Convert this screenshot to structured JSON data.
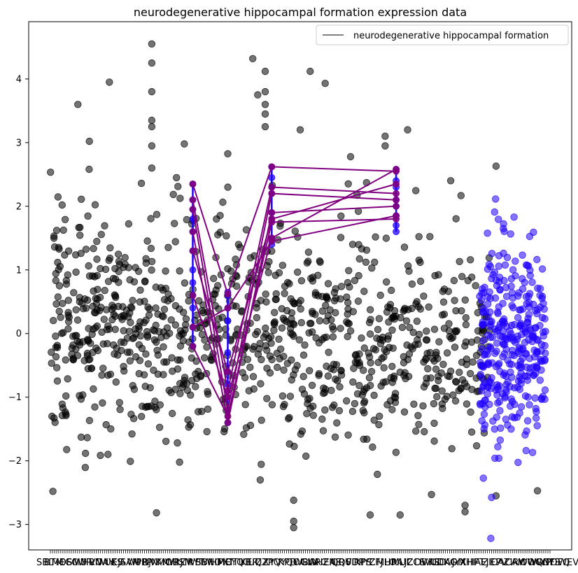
{
  "chart_data": {
    "type": "scatter",
    "title": "neurodegenerative hippocampal formation expression data",
    "xlabel": "",
    "ylabel": "",
    "ylim": [
      -3.4,
      4.9
    ],
    "yticks": [
      -3,
      -2,
      -1,
      0,
      1,
      2,
      3,
      4
    ],
    "grid": false,
    "legend": {
      "placement": "top-right",
      "entries": [
        {
          "label": "neurodegenerative hippocampal formation",
          "color": "#808080",
          "marker": "line"
        }
      ]
    },
    "x_tick_labels_visible": [
      "AGT",
      "WNQ",
      "QGPR"
    ],
    "background_points": {
      "color": "#000000",
      "alpha": 0.55,
      "seed": 7,
      "columns": [
        {
          "x": 0.01,
          "n": 30,
          "mean": 0.2,
          "sd": 1.0
        },
        {
          "x": 0.03,
          "n": 28,
          "mean": 0.1,
          "sd": 0.9
        },
        {
          "x": 0.05,
          "n": 25,
          "mean": 0.3,
          "sd": 0.8
        },
        {
          "x": 0.07,
          "n": 30,
          "mean": 0.0,
          "sd": 1.0
        },
        {
          "x": 0.09,
          "n": 30,
          "mean": 0.4,
          "sd": 0.9
        },
        {
          "x": 0.11,
          "n": 25,
          "mean": 0.2,
          "sd": 1.0
        },
        {
          "x": 0.13,
          "n": 28,
          "mean": 0.3,
          "sd": 0.9
        },
        {
          "x": 0.15,
          "n": 25,
          "mean": 0.1,
          "sd": 0.8
        },
        {
          "x": 0.17,
          "n": 25,
          "mean": 0.0,
          "sd": 0.8
        },
        {
          "x": 0.19,
          "n": 28,
          "mean": 0.2,
          "sd": 1.0
        },
        {
          "x": 0.21,
          "n": 25,
          "mean": 0.1,
          "sd": 0.9
        },
        {
          "x": 0.23,
          "n": 22,
          "mean": 0.0,
          "sd": 0.8
        },
        {
          "x": 0.25,
          "n": 25,
          "mean": 0.2,
          "sd": 1.0
        },
        {
          "x": 0.27,
          "n": 22,
          "mean": -0.2,
          "sd": 0.8
        },
        {
          "x": 0.29,
          "n": 22,
          "mean": 0.1,
          "sd": 0.9
        },
        {
          "x": 0.31,
          "n": 22,
          "mean": 0.0,
          "sd": 0.8
        },
        {
          "x": 0.33,
          "n": 25,
          "mean": 0.3,
          "sd": 0.9
        },
        {
          "x": 0.35,
          "n": 22,
          "mean": 0.0,
          "sd": 0.8
        },
        {
          "x": 0.37,
          "n": 22,
          "mean": 0.1,
          "sd": 0.8
        },
        {
          "x": 0.39,
          "n": 22,
          "mean": 0.0,
          "sd": 0.8
        },
        {
          "x": 0.41,
          "n": 22,
          "mean": -0.1,
          "sd": 0.8
        },
        {
          "x": 0.43,
          "n": 22,
          "mean": 0.0,
          "sd": 0.8
        },
        {
          "x": 0.45,
          "n": 22,
          "mean": 0.0,
          "sd": 0.9
        },
        {
          "x": 0.47,
          "n": 22,
          "mean": -0.2,
          "sd": 0.8
        },
        {
          "x": 0.49,
          "n": 25,
          "mean": 0.1,
          "sd": 0.8
        },
        {
          "x": 0.51,
          "n": 22,
          "mean": -0.1,
          "sd": 0.8
        },
        {
          "x": 0.53,
          "n": 22,
          "mean": 0.0,
          "sd": 0.9
        },
        {
          "x": 0.55,
          "n": 25,
          "mean": -0.1,
          "sd": 0.8
        },
        {
          "x": 0.57,
          "n": 22,
          "mean": -0.3,
          "sd": 0.8
        },
        {
          "x": 0.59,
          "n": 22,
          "mean": 0.1,
          "sd": 0.8
        },
        {
          "x": 0.61,
          "n": 25,
          "mean": 0.2,
          "sd": 0.9
        },
        {
          "x": 0.63,
          "n": 22,
          "mean": -0.1,
          "sd": 0.8
        },
        {
          "x": 0.65,
          "n": 22,
          "mean": -0.2,
          "sd": 0.8
        },
        {
          "x": 0.67,
          "n": 22,
          "mean": 0.0,
          "sd": 0.7
        },
        {
          "x": 0.69,
          "n": 22,
          "mean": -0.3,
          "sd": 0.8
        },
        {
          "x": 0.71,
          "n": 22,
          "mean": 0.0,
          "sd": 0.8
        },
        {
          "x": 0.73,
          "n": 20,
          "mean": -0.2,
          "sd": 0.8
        },
        {
          "x": 0.75,
          "n": 20,
          "mean": 0.0,
          "sd": 0.7
        },
        {
          "x": 0.77,
          "n": 20,
          "mean": -0.3,
          "sd": 0.8
        },
        {
          "x": 0.79,
          "n": 20,
          "mean": -0.1,
          "sd": 0.7
        },
        {
          "x": 0.81,
          "n": 20,
          "mean": -0.3,
          "sd": 0.8
        },
        {
          "x": 0.83,
          "n": 18,
          "mean": -0.2,
          "sd": 0.7
        },
        {
          "x": 0.85,
          "n": 18,
          "mean": -0.3,
          "sd": 0.8
        },
        {
          "x": 0.87,
          "n": 18,
          "mean": -0.4,
          "sd": 0.8
        }
      ]
    },
    "highlight_points": {
      "color": "#1f00ff",
      "alpha": 0.55,
      "seed": 11,
      "columns": [
        {
          "x": 0.865,
          "n": 40,
          "mean": -0.4,
          "sd": 0.8
        },
        {
          "x": 0.88,
          "n": 40,
          "mean": -0.2,
          "sd": 0.8
        },
        {
          "x": 0.895,
          "n": 45,
          "mean": -0.3,
          "sd": 0.9
        },
        {
          "x": 0.91,
          "n": 40,
          "mean": -0.1,
          "sd": 0.8
        },
        {
          "x": 0.925,
          "n": 35,
          "mean": -0.2,
          "sd": 0.7
        },
        {
          "x": 0.94,
          "n": 40,
          "mean": -0.2,
          "sd": 0.8
        },
        {
          "x": 0.955,
          "n": 40,
          "mean": -0.1,
          "sd": 0.7
        },
        {
          "x": 0.97,
          "n": 35,
          "mean": -0.2,
          "sd": 0.8
        },
        {
          "x": 0.985,
          "n": 30,
          "mean": 0.0,
          "sd": 0.7
        }
      ]
    },
    "outliers": [
      {
        "x": 0.203,
        "y": 4.55
      },
      {
        "x": 0.203,
        "y": 4.25
      },
      {
        "x": 0.203,
        "y": 3.8
      },
      {
        "x": 0.203,
        "y": 3.35
      },
      {
        "x": 0.203,
        "y": 3.25
      },
      {
        "x": 0.203,
        "y": 2.95
      },
      {
        "x": 0.203,
        "y": 2.6
      },
      {
        "x": 0.118,
        "y": 3.95
      },
      {
        "x": 0.055,
        "y": 3.6
      },
      {
        "x": 0.078,
        "y": 3.02
      },
      {
        "x": 0.405,
        "y": 4.32
      },
      {
        "x": 0.43,
        "y": 4.12
      },
      {
        "x": 0.43,
        "y": 3.8
      },
      {
        "x": 0.43,
        "y": 3.6
      },
      {
        "x": 0.43,
        "y": 3.45
      },
      {
        "x": 0.43,
        "y": 3.25
      },
      {
        "x": 0.415,
        "y": 3.75
      },
      {
        "x": 0.52,
        "y": 4.12
      },
      {
        "x": 0.55,
        "y": 3.93
      },
      {
        "x": 0.67,
        "y": 3.1
      },
      {
        "x": 0.67,
        "y": 2.95
      },
      {
        "x": 0.715,
        "y": 3.2
      },
      {
        "x": 0.005,
        "y": -2.48
      },
      {
        "x": 0.42,
        "y": -2.3
      },
      {
        "x": 0.487,
        "y": -2.95
      },
      {
        "x": 0.487,
        "y": -3.05
      },
      {
        "x": 0.487,
        "y": -2.62
      },
      {
        "x": 0.64,
        "y": -2.85
      },
      {
        "x": 0.7,
        "y": -2.85
      },
      {
        "x": 0.83,
        "y": -2.7
      },
      {
        "x": 0.83,
        "y": -2.8
      },
      {
        "x": 0.892,
        "y": -2.55
      },
      {
        "x": 0.975,
        "y": -2.47
      },
      {
        "x": 0.892,
        "y": 2.63
      },
      {
        "x": 0.5,
        "y": 3.2
      },
      {
        "x": 0.268,
        "y": 2.98
      }
    ],
    "segment_groups": [
      {
        "x": 0.285,
        "ys": [
          2.35,
          2.1,
          1.95,
          1.8,
          1.6,
          1.3,
          1.0,
          0.8,
          0.6,
          0.4,
          0.1,
          -0.2
        ]
      },
      {
        "x": 0.355,
        "ys": [
          0.65,
          0.6,
          0.4,
          0.2,
          -0.3,
          -0.6,
          -0.8,
          -1.0,
          -1.2,
          -1.4
        ]
      },
      {
        "x": 0.443,
        "ys": [
          2.62,
          2.45,
          2.3,
          2.2,
          1.9,
          1.8,
          1.5,
          1.4
        ]
      },
      {
        "x": 0.692,
        "ys": [
          2.58,
          2.4,
          2.3,
          2.1,
          2.0,
          1.85,
          1.7,
          1.6
        ]
      }
    ],
    "purple_lines": {
      "color": "#800080",
      "paths": [
        [
          [
            0.285,
            2.35
          ],
          [
            0.355,
            0.62
          ],
          [
            0.443,
            2.62
          ],
          [
            0.692,
            2.55
          ]
        ],
        [
          [
            0.285,
            2.1
          ],
          [
            0.355,
            -0.9
          ],
          [
            0.443,
            2.3
          ],
          [
            0.692,
            2.2
          ]
        ],
        [
          [
            0.285,
            1.95
          ],
          [
            0.355,
            -1.2
          ],
          [
            0.443,
            2.2
          ],
          [
            0.692,
            2.1
          ]
        ],
        [
          [
            0.285,
            1.6
          ],
          [
            0.355,
            -1.4
          ],
          [
            0.443,
            1.9
          ],
          [
            0.692,
            2.0
          ]
        ],
        [
          [
            0.285,
            1.3
          ],
          [
            0.355,
            -0.6
          ],
          [
            0.443,
            1.8
          ],
          [
            0.692,
            2.35
          ]
        ],
        [
          [
            0.285,
            0.6
          ],
          [
            0.355,
            -1.0
          ],
          [
            0.443,
            1.5
          ],
          [
            0.692,
            2.58
          ]
        ],
        [
          [
            0.285,
            0.1
          ],
          [
            0.355,
            0.4
          ],
          [
            0.443,
            1.45
          ],
          [
            0.692,
            1.85
          ]
        ],
        [
          [
            0.285,
            -0.2
          ],
          [
            0.355,
            -1.3
          ],
          [
            0.443,
            1.75
          ],
          [
            0.692,
            1.8
          ]
        ]
      ]
    }
  }
}
